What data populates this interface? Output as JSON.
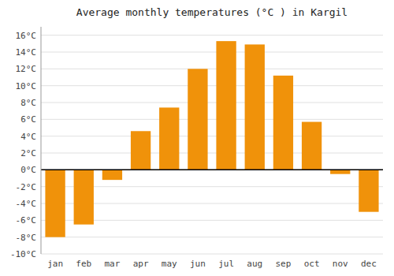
{
  "chart_data": {
    "type": "bar",
    "title": "Average monthly temperatures (°C ) in Kargil",
    "categories": [
      "jan",
      "feb",
      "mar",
      "apr",
      "may",
      "jun",
      "jul",
      "aug",
      "sep",
      "oct",
      "nov",
      "dec"
    ],
    "values": [
      -8,
      -6.5,
      -1.2,
      4.6,
      7.4,
      12.0,
      15.3,
      14.9,
      11.2,
      5.7,
      -0.5,
      -5.0
    ],
    "color": "#F0920A",
    "ylim": [
      -10,
      17
    ],
    "yticks": [
      {
        "value": -10,
        "label": "-10°C"
      },
      {
        "value": -8,
        "label": "-8°C"
      },
      {
        "value": -6,
        "label": "-6°C"
      },
      {
        "value": -4,
        "label": "-4°C"
      },
      {
        "value": -2,
        "label": "-2°C"
      },
      {
        "value": 0,
        "label": "0°C"
      },
      {
        "value": 2,
        "label": "2°C"
      },
      {
        "value": 4,
        "label": "4°C"
      },
      {
        "value": 6,
        "label": "6°C"
      },
      {
        "value": 8,
        "label": "8°C"
      },
      {
        "value": 10,
        "label": "10°C"
      },
      {
        "value": 12,
        "label": "12°C"
      },
      {
        "value": 14,
        "label": "14°C"
      },
      {
        "value": 16,
        "label": "16°C"
      }
    ],
    "grid": true
  }
}
